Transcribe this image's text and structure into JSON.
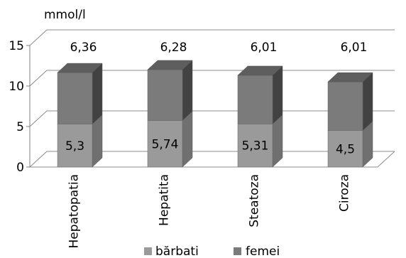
{
  "chart_data": {
    "type": "bar",
    "stacked": true,
    "three_d": true,
    "ylabel": "mmol/l",
    "ylim": [
      0,
      15
    ],
    "yticks": [
      0,
      5,
      10,
      15
    ],
    "grid": true,
    "legend_position": "bottom",
    "categories": [
      "Hepatopatia",
      "Hepatita",
      "Steatoza",
      "Ciroza"
    ],
    "series": [
      {
        "name": "bărbati",
        "values": [
          5.3,
          5.74,
          5.31,
          4.5
        ],
        "labels": [
          "5,3",
          "5,74",
          "5,31",
          "4,5"
        ],
        "color": "#9a9a9a",
        "color_side": "#707070",
        "color_top": "#b4b4b4"
      },
      {
        "name": "femei",
        "values": [
          6.36,
          6.28,
          6.01,
          6.01
        ],
        "labels": [
          "6,36",
          "6,28",
          "6,01",
          "6,01"
        ],
        "color": "#7b7b7b",
        "color_side": "#424242",
        "color_top": "#5e5e5e"
      }
    ]
  }
}
